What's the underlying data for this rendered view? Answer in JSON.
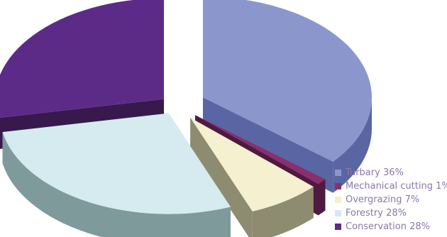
{
  "chart_data": {
    "type": "pie",
    "style": "3d-exploded",
    "title": "",
    "slices": [
      {
        "label": "Turbary 36%",
        "value": 36,
        "color": "#8b97cc",
        "side_color": "#5a65a3"
      },
      {
        "label": "Mechanical cutting 1%",
        "value": 1,
        "color": "#8a2f6e",
        "side_color": "#4e1a40"
      },
      {
        "label": "Overgrazing 7%",
        "value": 7,
        "color": "#f5f0cf",
        "side_color": "#8e8c70"
      },
      {
        "label": "Forestry 28%",
        "value": 28,
        "color": "#d6ebef",
        "side_color": "#7f9a9a"
      },
      {
        "label": "Conservation 28%",
        "value": 28,
        "color": "#5c2b88",
        "side_color": "#37194e"
      }
    ],
    "legend": {
      "position": "bottom-right"
    }
  }
}
